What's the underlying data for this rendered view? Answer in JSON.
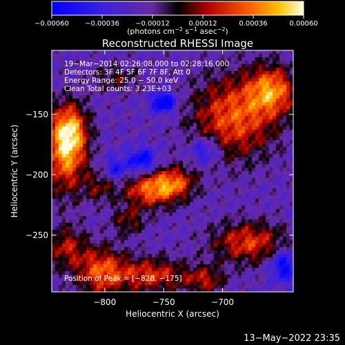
{
  "chart_data": {
    "type": "heatmap",
    "title": "Reconstructed RHESSI Image",
    "xlabel": "Heliocentric X (arcsec)",
    "ylabel": "Heliocentric Y (arcsec)",
    "xlim": [
      -845,
      -640
    ],
    "ylim": [
      -297,
      -97
    ],
    "x_ticks": [
      {
        "value": -800,
        "label": "−800"
      },
      {
        "value": -750,
        "label": "−750"
      },
      {
        "value": -700,
        "label": "−700"
      }
    ],
    "y_ticks": [
      {
        "value": -150,
        "label": "−150"
      },
      {
        "value": -200,
        "label": "−200"
      },
      {
        "value": -250,
        "label": "−250"
      }
    ],
    "colorbar": {
      "range": [
        -0.0006,
        0.0006
      ],
      "ticks": [
        {
          "value": -0.0006,
          "label": "−0.00060"
        },
        {
          "value": -0.00036,
          "label": "−0.00036"
        },
        {
          "value": -0.00012,
          "label": "−0.00012"
        },
        {
          "value": 0.00012,
          "label": "0.00012"
        },
        {
          "value": 0.00036,
          "label": "0.00036"
        },
        {
          "value": 0.0006,
          "label": "0.00060"
        }
      ],
      "unit": {
        "pre": "(photons cm",
        "sup1": "−2",
        "mid1": " s",
        "sup2": "−1",
        "mid2": " asec",
        "sup3": "−2",
        "post": ")"
      }
    },
    "annotations": [
      "19−Mar−2014 02:26:08.000 to 02:28:16.000",
      "Detectors: 3F 4F 5F 6F 7F 8F, Att 0",
      "Energy Range: 25.0 − 50.0 keV",
      "Clean    Total counts: 3.23E+03"
    ],
    "peak_label": "Position of Peak = [−828, −175]",
    "blobs": [
      {
        "x": -833,
        "y": -180,
        "sx": 12,
        "sy": 24,
        "a": 1.0
      },
      {
        "x": -829,
        "y": -163,
        "sx": 10,
        "sy": 14,
        "a": 0.6
      },
      {
        "x": -761,
        "y": -213,
        "sx": 17,
        "sy": 10,
        "a": 0.82
      },
      {
        "x": -741,
        "y": -206,
        "sx": 13,
        "sy": 9,
        "a": 0.65
      },
      {
        "x": -690,
        "y": -152,
        "sx": 25,
        "sy": 24,
        "a": 0.82
      },
      {
        "x": -658,
        "y": -130,
        "sx": 14,
        "sy": 14,
        "a": 0.85
      },
      {
        "x": -678,
        "y": -256,
        "sx": 22,
        "sy": 12,
        "a": 0.72
      },
      {
        "x": -760,
        "y": -283,
        "sx": 20,
        "sy": 10,
        "a": 0.7
      },
      {
        "x": -833,
        "y": -260,
        "sx": 12,
        "sy": 12,
        "a": 0.55
      },
      {
        "x": -803,
        "y": -280,
        "sx": 15,
        "sy": 14,
        "a": 0.8
      },
      {
        "x": -715,
        "y": -287,
        "sx": 12,
        "sy": 8,
        "a": 0.55
      },
      {
        "x": -780,
        "y": -238,
        "sx": 10,
        "sy": 8,
        "a": 0.45
      },
      {
        "x": -805,
        "y": -210,
        "sx": 9,
        "sy": 9,
        "a": 0.4
      },
      {
        "x": -790,
        "y": -120,
        "sx": 14,
        "sy": 8,
        "a": 0.35
      },
      {
        "x": -750,
        "y": -140,
        "sx": 7,
        "sy": 6,
        "a": -0.9
      },
      {
        "x": -768,
        "y": -188,
        "sx": 8,
        "sy": 7,
        "a": -0.7
      },
      {
        "x": -648,
        "y": -275,
        "sx": 8,
        "sy": 9,
        "a": -0.7
      },
      {
        "x": -715,
        "y": -180,
        "sx": 9,
        "sy": 8,
        "a": -0.55
      },
      {
        "x": -790,
        "y": -195,
        "sx": 7,
        "sy": 7,
        "a": -0.5
      }
    ]
  },
  "timestamp": "13−May−2022 23:35"
}
